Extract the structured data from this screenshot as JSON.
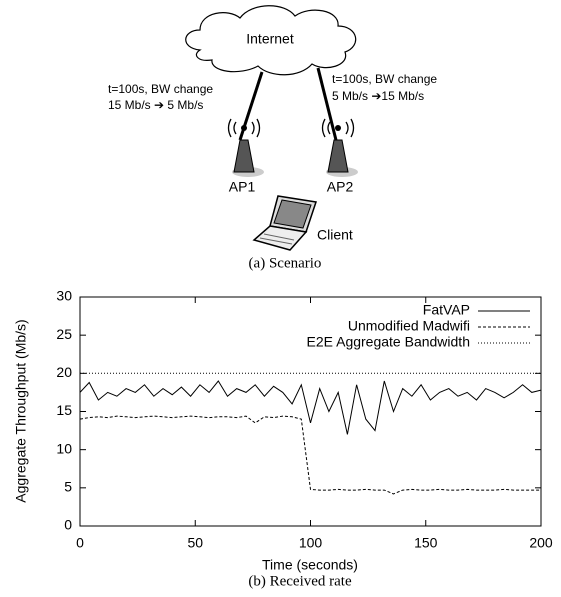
{
  "diagram": {
    "cloud": "Internet",
    "link1_note": [
      "t=100s, BW change",
      "15 Mb/s ➔ 5 Mb/s"
    ],
    "link2_note": [
      "t=100s, BW change",
      "5 Mb/s ➔15 Mb/s"
    ],
    "ap1": "AP1",
    "ap2": "AP2",
    "client": "Client",
    "caption": "(a) Scenario"
  },
  "chart_data": {
    "type": "line",
    "caption": "(b) Received rate",
    "xlabel": "Time (seconds)",
    "ylabel": "Aggregate Throughput (Mb/s)",
    "xlim": [
      0,
      200
    ],
    "xticks": [
      0,
      50,
      100,
      150,
      200
    ],
    "ylim": [
      0,
      30
    ],
    "yticks": [
      0,
      5,
      10,
      15,
      20,
      25,
      30
    ],
    "legend": "top-right",
    "x": [
      0,
      4,
      8,
      12,
      16,
      20,
      24,
      28,
      32,
      36,
      40,
      44,
      48,
      52,
      56,
      60,
      64,
      68,
      72,
      76,
      80,
      84,
      88,
      92,
      96,
      100,
      104,
      108,
      112,
      116,
      120,
      124,
      128,
      132,
      136,
      140,
      144,
      148,
      152,
      156,
      160,
      164,
      168,
      172,
      176,
      180,
      184,
      188,
      192,
      196,
      200
    ],
    "series": [
      {
        "name": "FatVAP",
        "color": "#000000",
        "style": "solid",
        "values": [
          17.5,
          18.8,
          16.5,
          17.5,
          17,
          18,
          17.5,
          18.5,
          17,
          18,
          17.2,
          18.2,
          17,
          18.5,
          17.5,
          19,
          17,
          18,
          17.5,
          18.5,
          17,
          18.3,
          17.5,
          16,
          18.5,
          13.5,
          18,
          15,
          17.5,
          12,
          18.5,
          14,
          12.5,
          19,
          15,
          18,
          17,
          18.5,
          16.5,
          17.5,
          18,
          17,
          17.5,
          16.5,
          18,
          17.5,
          16.8,
          17.5,
          18.5,
          17.5,
          17.8
        ]
      },
      {
        "name": "Unmodified Madwifi",
        "color": "#000000",
        "style": "dashed",
        "values": [
          14.0,
          14.2,
          14.3,
          14.2,
          14.4,
          14.3,
          14.2,
          14.3,
          14.4,
          14.3,
          14.2,
          14.3,
          14.4,
          14.3,
          14.2,
          14.3,
          14.3,
          14.2,
          14.4,
          13.5,
          14.3,
          14.2,
          14.4,
          14.3,
          14.0,
          4.8,
          4.7,
          4.7,
          4.8,
          4.7,
          4.7,
          4.8,
          4.7,
          4.7,
          4.2,
          4.7,
          4.8,
          4.7,
          4.7,
          4.8,
          4.7,
          4.7,
          4.8,
          4.7,
          4.7,
          4.7,
          4.8,
          4.7,
          4.7,
          4.7,
          4.7
        ]
      },
      {
        "name": "E2E Aggregate Bandwidth",
        "color": "#000000",
        "style": "dotted",
        "values": [
          20,
          20,
          20,
          20,
          20,
          20,
          20,
          20,
          20,
          20,
          20,
          20,
          20,
          20,
          20,
          20,
          20,
          20,
          20,
          20,
          20,
          20,
          20,
          20,
          20,
          20,
          20,
          20,
          20,
          20,
          20,
          20,
          20,
          20,
          20,
          20,
          20,
          20,
          20,
          20,
          20,
          20,
          20,
          20,
          20,
          20,
          20,
          20,
          20,
          20,
          20
        ]
      }
    ]
  }
}
